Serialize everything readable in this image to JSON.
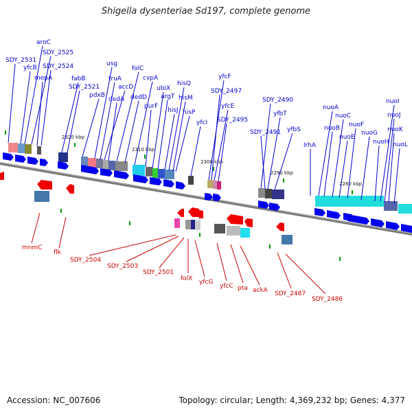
{
  "title": "Shigella dysenteriae Sd197, complete genome",
  "footer": {
    "accession": "Accession: NC_007606",
    "topology": "Topology: circular; Length: 4,369,232 bp; Genes: 4,377"
  },
  "colors": {
    "forward": "#0000ee",
    "reverse": "#ee0000",
    "label_top": "#0000cc",
    "label_bottom": "#cc0000",
    "tick": "#009900"
  },
  "kbp_labels": [
    "2320 kbp",
    "2310 kbp",
    "2300 kbp",
    "2290 kbp",
    "2280 kbp"
  ],
  "top_genes": [
    "SDY_2531",
    "aroC",
    "yfcB",
    "SDY_2525",
    "mepA",
    "SDY_2524",
    "fabB",
    "SDY_2521",
    "pdxB",
    "usg",
    "truA",
    "accD",
    "dedA",
    "folC",
    "dedD",
    "cvpA",
    "purF",
    "ubiX",
    "argT",
    "hisJ",
    "hisQ",
    "hisM",
    "hisP",
    "yfcI",
    "yfcF",
    "SDY_2497",
    "yfcE",
    "SDY_2495",
    "SDY_2490",
    "yfbT",
    "SDY_2491",
    "yfbS",
    "lrhA",
    "nuoA",
    "nuoB",
    "nuoC",
    "nuoE",
    "nuoF",
    "nuoG",
    "nuoH",
    "nuoI",
    "nuoJ",
    "nuoK",
    "nuoL"
  ],
  "bottom_genes": [
    "mnmC",
    "flk",
    "SDY_2504",
    "SDY_2503",
    "SDY_2501",
    "folX",
    "yfcG",
    "yfcC",
    "pta",
    "ackA",
    "SDY_2487",
    "SDY_2486"
  ]
}
